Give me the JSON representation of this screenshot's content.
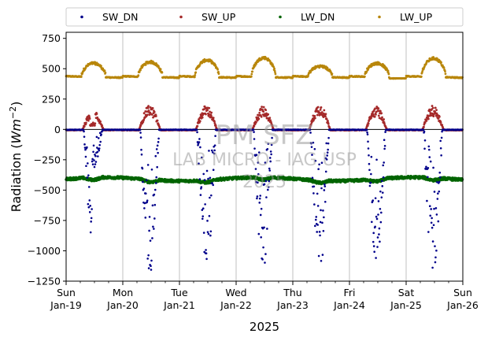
{
  "chart_data": {
    "type": "scatter",
    "ylabel": "Radiation (Wm^-2)",
    "ylabel_main": "Radiation (",
    "ylabel_unit": "Wm",
    "ylabel_exp": "−2",
    "ylabel_close": ")",
    "xlabel": "2025",
    "ylim": [
      -1250,
      800
    ],
    "yticks": [
      800,
      750,
      500,
      250,
      0,
      -250,
      -500,
      -750,
      -1000,
      -1250
    ],
    "ytick_labels": [
      "750",
      "500",
      "250",
      "0",
      "−250",
      "−500",
      "−750",
      "−1000",
      "−1250"
    ],
    "ytick_values": [
      750,
      500,
      250,
      0,
      -250,
      -500,
      -750,
      -1000,
      -1250
    ],
    "x_range": [
      "2025-01-19",
      "2025-01-26"
    ],
    "xticks": [
      {
        "day": "Sun",
        "date": "Jan-19"
      },
      {
        "day": "Mon",
        "date": "Jan-20"
      },
      {
        "day": "Tue",
        "date": "Jan-21"
      },
      {
        "day": "Wed",
        "date": "Jan-22"
      },
      {
        "day": "Thu",
        "date": "Jan-23"
      },
      {
        "day": "Fri",
        "date": "Jan-24"
      },
      {
        "day": "Sat",
        "date": "Jan-25"
      },
      {
        "day": "Sun",
        "date": "Jan-26"
      }
    ],
    "grid": "vertical",
    "legend_position": "top, outside, single row",
    "series": [
      {
        "name": "SW_DN",
        "color": "#00008b",
        "daily_min": [
          -940,
          -1210,
          -1180,
          -1160,
          -1190,
          -1100,
          -1200
        ]
      },
      {
        "name": "SW_UP",
        "color": "#a52a2a",
        "daily_max": [
          160,
          200,
          200,
          190,
          210,
          190,
          195
        ]
      },
      {
        "name": "LW_DN",
        "color": "#006400",
        "baseline": -410
      },
      {
        "name": "LW_UP",
        "color": "#b8860b",
        "night": 430,
        "day_peak": [
          545,
          555,
          570,
          590,
          520,
          545,
          585
        ]
      }
    ],
    "watermark": [
      "PM SFZ",
      "LAB MICRO - IAG USP",
      "2025"
    ]
  }
}
